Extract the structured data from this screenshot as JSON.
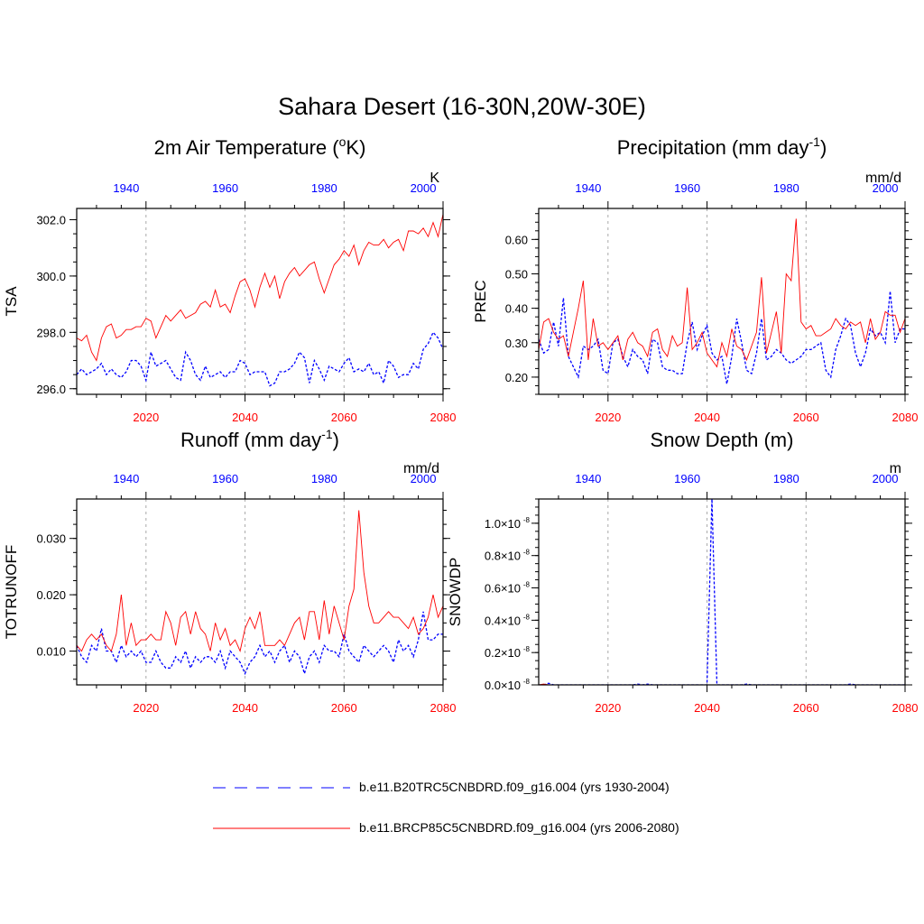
{
  "figure": {
    "title": "Sahara Desert (16-30N,20W-30E)"
  },
  "colors": {
    "historical": "#0000ff",
    "future": "#ff0000",
    "grid": "#aaaaaa"
  },
  "legend": [
    {
      "label": "b.e11.B20TRC5CNBDRD.f09_g16.004 (yrs 1930-2004)",
      "style": "dashed",
      "color": "#0000ff"
    },
    {
      "label": "b.e11.BRCP85C5CNBDRD.f09_g16.004 (yrs 2006-2080)",
      "style": "solid",
      "color": "#ff0000"
    }
  ],
  "chart_data": [
    {
      "type": "line",
      "title": "2m Air Temperature (oK)",
      "title_main": "2m Air Temperature (",
      "title_sup": "o",
      "title_end": "K)",
      "ylabel": "TSA",
      "units": "K",
      "ylim": [
        295.8,
        302.4
      ],
      "yticks": [
        296.0,
        298.0,
        300.0,
        302.0
      ],
      "ytick_labels": [
        "296.0",
        "298.0",
        "300.0",
        "302.0"
      ],
      "top_xticks": [
        1940,
        1960,
        1980,
        2000
      ],
      "bottom_xticks": [
        2020,
        2040,
        2060,
        2080
      ],
      "grid_years": [
        2020,
        2040,
        2060
      ],
      "x_start": 2006,
      "x_end": 2080,
      "series": [
        {
          "name": "b.e11.B20TRC5CNBDRD.f09_g16.004 (yrs 1930-2004)",
          "values": [
            296.5,
            296.7,
            296.5,
            296.6,
            296.7,
            296.9,
            296.5,
            296.7,
            296.5,
            296.4,
            296.6,
            297.0,
            297.0,
            296.8,
            296.3,
            297.3,
            296.8,
            296.9,
            297.0,
            296.7,
            296.4,
            296.3,
            297.3,
            297.0,
            296.5,
            296.3,
            296.8,
            296.4,
            296.5,
            296.6,
            296.4,
            296.6,
            296.6,
            297.0,
            296.9,
            296.5,
            296.6,
            296.6,
            296.6,
            296.1,
            296.2,
            296.6,
            296.6,
            296.7,
            296.9,
            297.3,
            297.1,
            296.2,
            297.0,
            296.7,
            296.3,
            296.8,
            296.7,
            296.6,
            296.9,
            297.1,
            296.6,
            296.7,
            296.6,
            296.9,
            296.5,
            296.6,
            296.2,
            297.0,
            296.8,
            296.4,
            296.5,
            296.5,
            296.9,
            296.7,
            297.4,
            297.6,
            298.0,
            297.8,
            297.4
          ]
        },
        {
          "name": "b.e11.BRCP85C5CNBDRD.f09_g16.004 (yrs 2006-2080)",
          "values": [
            297.8,
            297.7,
            297.9,
            297.3,
            297.0,
            297.8,
            298.2,
            298.3,
            297.8,
            297.9,
            298.1,
            298.1,
            298.2,
            298.2,
            298.5,
            298.4,
            297.8,
            298.2,
            298.6,
            298.4,
            298.6,
            298.8,
            298.5,
            298.6,
            298.7,
            299.0,
            299.1,
            298.9,
            299.5,
            298.9,
            299.0,
            298.7,
            299.3,
            299.8,
            299.9,
            299.5,
            298.9,
            299.6,
            300.1,
            299.6,
            300.0,
            299.2,
            299.8,
            300.1,
            300.3,
            300.0,
            300.2,
            300.4,
            300.5,
            299.9,
            299.4,
            299.9,
            300.4,
            300.6,
            300.9,
            300.7,
            301.1,
            300.4,
            300.9,
            301.2,
            301.1,
            301.1,
            301.3,
            301.0,
            301.2,
            301.3,
            300.9,
            301.6,
            301.6,
            301.5,
            301.7,
            301.4,
            301.9,
            301.4,
            302.2
          ]
        }
      ]
    },
    {
      "type": "line",
      "title": "Precipitation (mm day-1)",
      "title_main": "Precipitation (mm day",
      "title_sup": "-1",
      "title_end": ")",
      "ylabel": "PREC",
      "units": "mm/d",
      "ylim": [
        0.15,
        0.69
      ],
      "yticks": [
        0.2,
        0.3,
        0.4,
        0.5,
        0.6
      ],
      "ytick_labels": [
        "0.20",
        "0.30",
        "0.40",
        "0.50",
        "0.60"
      ],
      "top_xticks": [
        1940,
        1960,
        1980,
        2000
      ],
      "bottom_xticks": [
        2020,
        2040,
        2060,
        2080
      ],
      "grid_years": [
        2020,
        2040,
        2060
      ],
      "x_start": 2006,
      "x_end": 2080,
      "series": [
        {
          "name": "b.e11.B20TRC5CNBDRD.f09_g16.004 (yrs 1930-2004)",
          "values": [
            0.31,
            0.27,
            0.28,
            0.36,
            0.29,
            0.43,
            0.26,
            0.23,
            0.2,
            0.29,
            0.28,
            0.29,
            0.31,
            0.22,
            0.21,
            0.3,
            0.31,
            0.26,
            0.23,
            0.28,
            0.26,
            0.25,
            0.21,
            0.31,
            0.3,
            0.23,
            0.22,
            0.22,
            0.21,
            0.21,
            0.3,
            0.36,
            0.28,
            0.32,
            0.35,
            0.27,
            0.25,
            0.26,
            0.18,
            0.26,
            0.37,
            0.3,
            0.22,
            0.21,
            0.27,
            0.37,
            0.25,
            0.26,
            0.28,
            0.27,
            0.25,
            0.24,
            0.25,
            0.26,
            0.28,
            0.28,
            0.29,
            0.3,
            0.22,
            0.2,
            0.28,
            0.32,
            0.37,
            0.35,
            0.27,
            0.23,
            0.27,
            0.34,
            0.32,
            0.33,
            0.3,
            0.45,
            0.3,
            0.34,
            0.34
          ]
        },
        {
          "name": "b.e11.BRCP85C5CNBDRD.f09_g16.004 (yrs 2006-2080)",
          "values": [
            0.28,
            0.36,
            0.37,
            0.33,
            0.31,
            0.32,
            0.26,
            0.33,
            0.4,
            0.48,
            0.25,
            0.37,
            0.29,
            0.3,
            0.28,
            0.3,
            0.32,
            0.25,
            0.31,
            0.33,
            0.3,
            0.29,
            0.26,
            0.33,
            0.34,
            0.28,
            0.26,
            0.32,
            0.29,
            0.3,
            0.46,
            0.28,
            0.3,
            0.33,
            0.27,
            0.25,
            0.23,
            0.3,
            0.26,
            0.34,
            0.29,
            0.28,
            0.25,
            0.29,
            0.33,
            0.49,
            0.27,
            0.33,
            0.39,
            0.27,
            0.5,
            0.48,
            0.66,
            0.36,
            0.34,
            0.35,
            0.32,
            0.32,
            0.33,
            0.34,
            0.37,
            0.35,
            0.34,
            0.36,
            0.35,
            0.36,
            0.3,
            0.37,
            0.31,
            0.33,
            0.39,
            0.38,
            0.38,
            0.33,
            0.37
          ]
        }
      ]
    },
    {
      "type": "line",
      "title": "Runoff (mm day-1)",
      "title_main": "Runoff (mm day",
      "title_sup": "-1",
      "title_end": ")",
      "ylabel": "TOTRUNOFF",
      "units": "mm/d",
      "ylim": [
        0.004,
        0.037
      ],
      "yticks": [
        0.01,
        0.02,
        0.03
      ],
      "ytick_labels": [
        "0.010",
        "0.020",
        "0.030"
      ],
      "top_xticks": [
        1940,
        1960,
        1980,
        2000
      ],
      "bottom_xticks": [
        2020,
        2040,
        2060,
        2080
      ],
      "grid_years": [
        2020,
        2040,
        2060
      ],
      "x_start": 2006,
      "x_end": 2080,
      "series": [
        {
          "name": "b.e11.B20TRC5CNBDRD.f09_g16.004 (yrs 1930-2004)",
          "values": [
            0.011,
            0.009,
            0.008,
            0.011,
            0.01,
            0.014,
            0.01,
            0.01,
            0.008,
            0.011,
            0.009,
            0.01,
            0.009,
            0.01,
            0.008,
            0.008,
            0.01,
            0.008,
            0.007,
            0.007,
            0.009,
            0.008,
            0.01,
            0.007,
            0.009,
            0.008,
            0.009,
            0.009,
            0.008,
            0.01,
            0.007,
            0.01,
            0.009,
            0.008,
            0.006,
            0.008,
            0.009,
            0.011,
            0.009,
            0.01,
            0.008,
            0.01,
            0.011,
            0.008,
            0.01,
            0.009,
            0.006,
            0.009,
            0.01,
            0.008,
            0.011,
            0.01,
            0.01,
            0.009,
            0.013,
            0.01,
            0.009,
            0.008,
            0.011,
            0.01,
            0.009,
            0.01,
            0.011,
            0.01,
            0.008,
            0.012,
            0.01,
            0.011,
            0.009,
            0.012,
            0.017,
            0.012,
            0.012,
            0.013,
            0.013
          ]
        },
        {
          "name": "b.e11.BRCP85C5CNBDRD.f09_g16.004 (yrs 2006-2080)",
          "values": [
            0.011,
            0.01,
            0.012,
            0.013,
            0.012,
            0.013,
            0.011,
            0.01,
            0.013,
            0.02,
            0.011,
            0.015,
            0.011,
            0.012,
            0.012,
            0.013,
            0.012,
            0.012,
            0.017,
            0.015,
            0.011,
            0.016,
            0.017,
            0.013,
            0.017,
            0.014,
            0.013,
            0.01,
            0.015,
            0.012,
            0.014,
            0.011,
            0.012,
            0.01,
            0.014,
            0.016,
            0.014,
            0.017,
            0.011,
            0.011,
            0.011,
            0.012,
            0.011,
            0.013,
            0.015,
            0.016,
            0.012,
            0.017,
            0.017,
            0.012,
            0.019,
            0.013,
            0.018,
            0.015,
            0.012,
            0.018,
            0.021,
            0.035,
            0.024,
            0.018,
            0.015,
            0.015,
            0.016,
            0.017,
            0.016,
            0.016,
            0.015,
            0.014,
            0.016,
            0.013,
            0.014,
            0.016,
            0.02,
            0.016,
            0.018
          ]
        }
      ]
    },
    {
      "type": "line",
      "title": "Snow Depth (m)",
      "title_main": "Snow Depth (m)",
      "title_sup": "",
      "title_end": "",
      "ylabel": "SNOWDP",
      "units": "m",
      "ylim": [
        0,
        1.15e-08
      ],
      "yticks": [
        0,
        2e-09,
        4e-09,
        6e-09,
        8e-09,
        1e-08
      ],
      "ytick_labels": [
        "0.0×10",
        "0.2×10",
        "0.4×10",
        "0.6×10",
        "0.8×10",
        "1.0×10"
      ],
      "ytick_exponent": "-8",
      "top_xticks": [
        1940,
        1960,
        1980,
        2000
      ],
      "bottom_xticks": [
        2020,
        2040,
        2060,
        2080
      ],
      "grid_years": [
        2020,
        2040,
        2060
      ],
      "x_start": 2006,
      "x_end": 2080,
      "series": [
        {
          "name": "b.e11.B20TRC5CNBDRD.f09_g16.004 (yrs 1930-2004)",
          "values": [
            0,
            0,
            1e-10,
            0,
            0,
            0,
            0,
            0,
            0,
            0,
            0,
            0,
            0,
            0,
            0,
            0,
            0,
            0,
            0,
            0,
            5e-11,
            0,
            5e-11,
            0,
            0,
            0,
            0,
            0,
            0,
            0,
            0,
            0,
            0,
            0,
            0,
            1.15e-08,
            0,
            0,
            0,
            0,
            0,
            0,
            5e-11,
            0,
            0,
            0,
            0,
            0,
            0,
            0,
            0,
            0,
            0,
            0,
            0,
            0,
            0,
            0,
            0,
            0,
            0,
            0,
            0,
            5e-11,
            0,
            0,
            0,
            0,
            0,
            0,
            0,
            0,
            0,
            0,
            0
          ]
        },
        {
          "name": "b.e11.BRCP85C5CNBDRD.f09_g16.004 (yrs 2006-2080)",
          "values": [
            0,
            5e-11,
            0,
            0,
            0,
            0,
            0,
            0,
            0,
            0,
            0,
            0,
            0,
            0,
            0,
            0,
            0,
            0,
            0,
            0,
            0,
            0,
            0,
            0,
            0,
            0,
            0,
            0,
            0,
            0,
            0,
            0,
            0,
            0,
            0,
            0,
            0,
            0,
            0,
            0,
            0,
            0,
            0,
            0,
            0,
            0,
            0,
            0,
            0,
            0,
            0,
            0,
            0,
            0,
            0,
            0,
            0,
            0,
            0,
            0,
            0,
            0,
            0,
            0,
            0,
            0,
            0,
            0,
            0,
            0,
            0,
            0,
            0,
            0,
            0
          ]
        }
      ]
    }
  ]
}
